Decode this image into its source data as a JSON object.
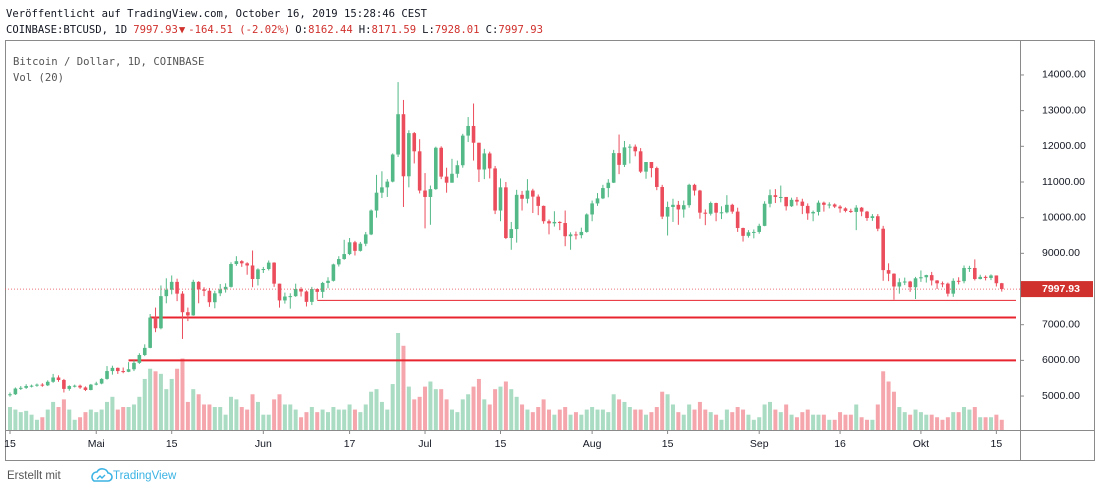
{
  "chart_data": {
    "type": "candlestick",
    "published": "Veröffentlicht auf TradingView.com, October 16, 2019 15:28:46 CEST",
    "quote": {
      "symbol": "COINBASE:BTCUSD, 1D",
      "last": "7997.93",
      "arrow": "▼",
      "change": "-164.51 (-2.02%)",
      "ohlc": [
        {
          "label": "O:",
          "value": "8162.44"
        },
        {
          "label": "H:",
          "value": "8171.59"
        },
        {
          "label": "L:",
          "value": "7928.01"
        },
        {
          "label": "C:",
          "value": "7997.93"
        }
      ]
    },
    "legend_title": "Bitcoin / Dollar, 1D, COINBASE",
    "volume_label": "Vol (20)",
    "footer": {
      "made_with": "Erstellt mit",
      "brand": "TradingView"
    },
    "last_price_label": "7997.93",
    "up_color": "#53b987",
    "down_color": "#eb4d5c",
    "up_volume_color": "#a9dcc3",
    "down_volume_color": "#f5a6ad",
    "quote_color": "#d0312d",
    "line_color": "#e8252f",
    "ylim": [
      4048,
      14980
    ],
    "yticks": [
      {
        "value": 5000,
        "label": "5000.00"
      },
      {
        "value": 6000,
        "label": "6000.00"
      },
      {
        "value": 7000,
        "label": "7000.00"
      },
      {
        "value": 8000,
        "label": "8000.00"
      },
      {
        "value": 9000,
        "label": "9000.00"
      },
      {
        "value": 10000,
        "label": "10000.00"
      },
      {
        "value": 11000,
        "label": "11000.00"
      },
      {
        "value": 12000,
        "label": "12000.00"
      },
      {
        "value": 13000,
        "label": "13000.00"
      },
      {
        "value": 14000,
        "label": "14000.00"
      }
    ],
    "xticks": [
      {
        "value": "04-15",
        "label": "15"
      },
      {
        "value": "05-01",
        "label": "Mai"
      },
      {
        "value": "05-15",
        "label": "15"
      },
      {
        "value": "06-01",
        "label": "Jun"
      },
      {
        "value": "06-17",
        "label": "17"
      },
      {
        "value": "07-01",
        "label": "Jul"
      },
      {
        "value": "07-15",
        "label": "15"
      },
      {
        "value": "08-01",
        "label": "Aug"
      },
      {
        "value": "08-15",
        "label": "15"
      },
      {
        "value": "09-01",
        "label": "Sep"
      },
      {
        "value": "09-16",
        "label": "16"
      },
      {
        "value": "10-01",
        "label": "Okt"
      },
      {
        "value": "10-15",
        "label": "15"
      }
    ],
    "hlines": [
      {
        "value": 7680,
        "from": "06-11",
        "width": 1
      },
      {
        "value": 7200,
        "from": "05-11",
        "width": 2
      },
      {
        "value": 6000,
        "from": "05-07",
        "width": 2
      }
    ],
    "dates": [
      "04-15",
      "04-16",
      "04-17",
      "04-18",
      "04-19",
      "04-20",
      "04-21",
      "04-22",
      "04-23",
      "04-24",
      "04-25",
      "04-26",
      "04-27",
      "04-28",
      "04-29",
      "04-30",
      "05-01",
      "05-02",
      "05-03",
      "05-04",
      "05-05",
      "05-06",
      "05-07",
      "05-08",
      "05-09",
      "05-10",
      "05-11",
      "05-12",
      "05-13",
      "05-14",
      "05-15",
      "05-16",
      "05-17",
      "05-18",
      "05-19",
      "05-20",
      "05-21",
      "05-22",
      "05-23",
      "05-24",
      "05-25",
      "05-26",
      "05-27",
      "05-28",
      "05-29",
      "05-30",
      "05-31",
      "06-01",
      "06-02",
      "06-03",
      "06-04",
      "06-05",
      "06-06",
      "06-07",
      "06-08",
      "06-09",
      "06-10",
      "06-11",
      "06-12",
      "06-13",
      "06-14",
      "06-15",
      "06-16",
      "06-17",
      "06-18",
      "06-19",
      "06-20",
      "06-21",
      "06-22",
      "06-23",
      "06-24",
      "06-25",
      "06-26",
      "06-27",
      "06-28",
      "06-29",
      "06-30",
      "07-01",
      "07-02",
      "07-03",
      "07-04",
      "07-05",
      "07-06",
      "07-07",
      "07-08",
      "07-09",
      "07-10",
      "07-11",
      "07-12",
      "07-13",
      "07-14",
      "07-15",
      "07-16",
      "07-17",
      "07-18",
      "07-19",
      "07-20",
      "07-21",
      "07-22",
      "07-23",
      "07-24",
      "07-25",
      "07-26",
      "07-27",
      "07-28",
      "07-29",
      "07-30",
      "07-31",
      "08-01",
      "08-02",
      "08-03",
      "08-04",
      "08-05",
      "08-06",
      "08-07",
      "08-08",
      "08-09",
      "08-10",
      "08-11",
      "08-12",
      "08-13",
      "08-14",
      "08-15",
      "08-16",
      "08-17",
      "08-18",
      "08-19",
      "08-20",
      "08-21",
      "08-22",
      "08-23",
      "08-24",
      "08-25",
      "08-26",
      "08-27",
      "08-28",
      "08-29",
      "08-30",
      "08-31",
      "09-01",
      "09-02",
      "09-03",
      "09-04",
      "09-05",
      "09-06",
      "09-07",
      "09-08",
      "09-09",
      "09-10",
      "09-11",
      "09-12",
      "09-13",
      "09-14",
      "09-15",
      "09-16",
      "09-17",
      "09-18",
      "09-19",
      "09-20",
      "09-21",
      "09-22",
      "09-23",
      "09-24",
      "09-25",
      "09-26",
      "09-27",
      "09-28",
      "09-29",
      "09-30",
      "10-01",
      "10-02",
      "10-03",
      "10-04",
      "10-05",
      "10-06",
      "10-07",
      "10-08",
      "10-09",
      "10-10",
      "10-11",
      "10-12",
      "10-13",
      "10-14",
      "10-15",
      "10-16"
    ],
    "open": [
      5030,
      5050,
      5210,
      5230,
      5280,
      5290,
      5320,
      5300,
      5400,
      5520,
      5450,
      5200,
      5280,
      5290,
      5240,
      5170,
      5320,
      5350,
      5480,
      5700,
      5790,
      5700,
      5680,
      5750,
      5930,
      6150,
      6350,
      7200,
      6900,
      7800,
      7980,
      8200,
      7870,
      7350,
      7260,
      8200,
      7990,
      7950,
      7630,
      7880,
      7990,
      8060,
      8700,
      8780,
      8720,
      8660,
      8280,
      8550,
      8560,
      8740,
      8150,
      7680,
      7790,
      7800,
      8000,
      7930,
      7640,
      8000,
      7920,
      8170,
      8230,
      8690,
      8840,
      8980,
      9310,
      9070,
      9270,
      9530,
      10200,
      10700,
      10850,
      11010,
      11770,
      12900,
      11160,
      12370,
      11860,
      10760,
      10580,
      10800,
      11960,
      11150,
      10980,
      11230,
      11470,
      12300,
      12570,
      12100,
      11350,
      11800,
      11380,
      10200,
      10850,
      9430,
      9680,
      10640,
      10530,
      10760,
      10590,
      10330,
      9900,
      9840,
      9880,
      9850,
      9480,
      9530,
      9510,
      9600,
      10090,
      10400,
      10540,
      10830,
      10980,
      11810,
      11480,
      11970,
      11990,
      11860,
      11290,
      11560,
      11390,
      10860,
      10030,
      10300,
      10360,
      10230,
      10350,
      10920,
      10760,
      10140,
      10110,
      10410,
      10140,
      10150,
      10360,
      10170,
      9710,
      9490,
      9590,
      9600,
      9770,
      10390,
      10630,
      10580,
      10580,
      10320,
      10500,
      10450,
      10330,
      10120,
      10160,
      10420,
      10360,
      10370,
      10310,
      10260,
      10190,
      10160,
      10280,
      10170,
      9990,
      10040,
      9690,
      8530,
      8430,
      8070,
      8190,
      8210,
      8050,
      8300,
      8330,
      8390,
      8240,
      8160,
      8150,
      7870,
      8230,
      8220,
      8590,
      8590,
      8280,
      8340,
      8310,
      8380,
      8162.44
    ],
    "high": [
      5100,
      5240,
      5280,
      5330,
      5320,
      5350,
      5360,
      5440,
      5620,
      5580,
      5480,
      5300,
      5320,
      5320,
      5270,
      5340,
      5400,
      5500,
      5840,
      5850,
      5800,
      5800,
      5950,
      6000,
      6200,
      6450,
      7300,
      7480,
      8100,
      8300,
      8380,
      8290,
      7940,
      7480,
      8260,
      8220,
      8050,
      8030,
      7950,
      8140,
      8160,
      8750,
      8920,
      8810,
      8750,
      9080,
      8580,
      8620,
      8800,
      8750,
      8150,
      7900,
      7880,
      8150,
      8050,
      7960,
      8060,
      8020,
      8200,
      8330,
      8710,
      8920,
      9380,
      9430,
      9350,
      9320,
      9600,
      10230,
      11200,
      11300,
      11080,
      11800,
      13800,
      13300,
      12450,
      12400,
      12200,
      11250,
      10900,
      11990,
      12000,
      11400,
      11650,
      11600,
      12350,
      12820,
      13200,
      12100,
      11930,
      11850,
      11450,
      11100,
      11000,
      9880,
      10780,
      10750,
      11080,
      10810,
      10650,
      10340,
      9950,
      10180,
      9900,
      10200,
      9590,
      9610,
      9720,
      10120,
      10480,
      10690,
      10920,
      11080,
      11900,
      12330,
      12150,
      12060,
      12050,
      11950,
      11560,
      11550,
      11430,
      10920,
      10450,
      10530,
      10470,
      10480,
      10950,
      10950,
      10780,
      10230,
      10450,
      10420,
      10320,
      10630,
      10390,
      10280,
      9720,
      9650,
      9670,
      9830,
      10460,
      10790,
      10800,
      10900,
      10580,
      10560,
      10580,
      10530,
      10400,
      10200,
      10480,
      10450,
      10430,
      10400,
      10350,
      10290,
      10250,
      10350,
      10300,
      10190,
      10100,
      10100,
      9770,
      8720,
      8440,
      8300,
      8320,
      8230,
      8340,
      8520,
      8400,
      8480,
      8250,
      8210,
      8180,
      8300,
      8330,
      8660,
      8650,
      8830,
      8400,
      8380,
      8410,
      8380,
      8171.59
    ],
    "low": [
      4980,
      5030,
      5170,
      5200,
      5240,
      5260,
      5260,
      5280,
      5370,
      5400,
      5100,
      5150,
      5240,
      5200,
      5140,
      5160,
      5300,
      5330,
      5460,
      5600,
      5620,
      5640,
      5670,
      5700,
      5900,
      6120,
      6340,
      6790,
      6870,
      7600,
      7850,
      7660,
      6600,
      7100,
      7250,
      7600,
      7800,
      7500,
      7460,
      7800,
      7900,
      8040,
      8650,
      8620,
      8400,
      8050,
      8100,
      8450,
      8520,
      8060,
      7480,
      7590,
      7450,
      7780,
      7790,
      7510,
      7550,
      7700,
      7750,
      8020,
      8210,
      8630,
      8820,
      8950,
      8940,
      9050,
      9200,
      9510,
      10000,
      10550,
      10580,
      10990,
      11700,
      10300,
      10850,
      11520,
      10680,
      9700,
      9800,
      10780,
      11080,
      10700,
      10980,
      11120,
      11400,
      12120,
      11600,
      11000,
      11080,
      11100,
      10100,
      9900,
      9400,
      9100,
      9300,
      10200,
      10400,
      10130,
      10070,
      9830,
      9530,
      9750,
      9650,
      9200,
      9100,
      9390,
      9420,
      9580,
      9900,
      10330,
      10520,
      10570,
      10970,
      11220,
      11420,
      11520,
      11720,
      11250,
      11090,
      11130,
      10770,
      9960,
      9500,
      9880,
      9800,
      10000,
      10280,
      10620,
      9970,
      9790,
      10060,
      9900,
      9960,
      10120,
      10110,
      9600,
      9330,
      9440,
      9420,
      9550,
      9760,
      10290,
      10410,
      10430,
      10200,
      10300,
      10340,
      10100,
      9940,
      9900,
      10060,
      10170,
      10260,
      10270,
      10140,
      10150,
      10130,
      9650,
      10040,
      9910,
      9910,
      9620,
      8230,
      8220,
      7700,
      7870,
      8110,
      7920,
      7720,
      8200,
      8180,
      8100,
      8000,
      8050,
      7790,
      7780,
      8130,
      8160,
      8480,
      8240,
      8270,
      8240,
      8250,
      8070,
      7928.01
    ],
    "close": [
      5050,
      5210,
      5230,
      5280,
      5290,
      5320,
      5300,
      5400,
      5520,
      5450,
      5200,
      5280,
      5290,
      5240,
      5170,
      5320,
      5350,
      5480,
      5700,
      5790,
      5700,
      5680,
      5750,
      5930,
      6150,
      6350,
      7200,
      6900,
      7800,
      7980,
      8200,
      7870,
      7350,
      7260,
      8200,
      7990,
      7950,
      7630,
      7880,
      7990,
      8060,
      8700,
      8780,
      8720,
      8660,
      8280,
      8550,
      8560,
      8740,
      8150,
      7680,
      7790,
      7800,
      8000,
      7930,
      7640,
      8000,
      7920,
      8170,
      8230,
      8690,
      8840,
      8980,
      9310,
      9070,
      9270,
      9530,
      10200,
      10700,
      10850,
      11010,
      11770,
      12900,
      11160,
      12370,
      11860,
      10760,
      10580,
      10800,
      11960,
      11150,
      10980,
      11230,
      11470,
      12300,
      12570,
      12100,
      11350,
      11800,
      11380,
      10200,
      10850,
      9430,
      9680,
      10640,
      10530,
      10760,
      10590,
      10330,
      9900,
      9840,
      9880,
      9850,
      9480,
      9530,
      9510,
      9600,
      10090,
      10400,
      10540,
      10830,
      10980,
      11810,
      11480,
      11970,
      11990,
      11860,
      11290,
      11560,
      11390,
      10860,
      10030,
      10300,
      10360,
      10230,
      10350,
      10920,
      10760,
      10140,
      10110,
      10410,
      10140,
      10150,
      10360,
      10170,
      9710,
      9490,
      9590,
      9600,
      9770,
      10390,
      10630,
      10580,
      10580,
      10320,
      10500,
      10450,
      10330,
      10120,
      10160,
      10420,
      10360,
      10370,
      10310,
      10260,
      10190,
      10160,
      10280,
      10170,
      9990,
      10040,
      9690,
      8530,
      8430,
      8070,
      8190,
      8210,
      8050,
      8300,
      8330,
      8390,
      8240,
      8160,
      8150,
      7870,
      8230,
      8220,
      8590,
      8590,
      8280,
      8340,
      8310,
      8380,
      8162.44,
      7997.93
    ],
    "volume": [
      9000,
      8000,
      7000,
      7500,
      6000,
      4000,
      5000,
      8000,
      11000,
      9000,
      12000,
      8000,
      4000,
      5000,
      7000,
      8000,
      7000,
      8000,
      11000,
      13000,
      8000,
      9000,
      9000,
      10000,
      13000,
      20000,
      24000,
      23000,
      22000,
      16000,
      20000,
      24000,
      28000,
      11000,
      16000,
      14000,
      10000,
      10000,
      9000,
      9000,
      6000,
      13000,
      12000,
      9000,
      8000,
      14000,
      11000,
      6000,
      6000,
      12000,
      14000,
      10000,
      10000,
      8000,
      5000,
      7000,
      9000,
      7000,
      8000,
      7000,
      9000,
      8000,
      8000,
      10000,
      8000,
      7000,
      10000,
      15000,
      16000,
      11000,
      8000,
      18000,
      38000,
      33000,
      17000,
      12000,
      13000,
      17000,
      19000,
      16000,
      16000,
      12000,
      8000,
      7000,
      12000,
      14000,
      17000,
      20000,
      12000,
      10000,
      16000,
      17000,
      19000,
      16000,
      13000,
      10000,
      8000,
      7000,
      9000,
      12000,
      8000,
      6000,
      8000,
      9000,
      6000,
      7000,
      6000,
      8000,
      9000,
      8000,
      8000,
      7000,
      14000,
      12000,
      11000,
      9000,
      8000,
      8000,
      6000,
      7000,
      9000,
      15000,
      14000,
      10000,
      7000,
      6000,
      10000,
      8000,
      11000,
      8000,
      7000,
      6000,
      4000,
      8000,
      7000,
      9000,
      8000,
      6000,
      4000,
      5000,
      10000,
      11000,
      8000,
      7000,
      10000,
      6000,
      5000,
      7000,
      8000,
      6000,
      6000,
      6000,
      4000,
      4000,
      7000,
      6000,
      6000,
      10000,
      5000,
      4000,
      4000,
      10000,
      23000,
      19000,
      15000,
      9000,
      7000,
      6000,
      8000,
      7000,
      6000,
      6000,
      5000,
      4000,
      5000,
      7000,
      7000,
      9000,
      8000,
      9000,
      5000,
      5000,
      5000,
      6000,
      4000
    ]
  }
}
